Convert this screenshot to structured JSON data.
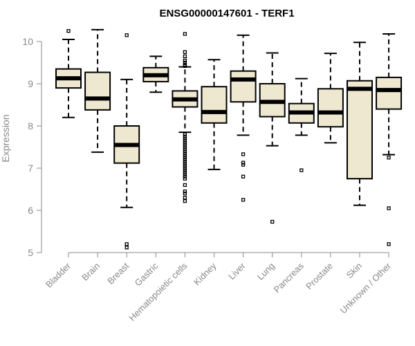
{
  "chart_data": {
    "type": "boxplot",
    "title": "ENSG00000147601 - TERF1",
    "xlabel": "",
    "ylabel": "Expression",
    "ylim": [
      5,
      10.2
    ],
    "yticks": [
      5,
      6,
      7,
      8,
      9,
      10
    ],
    "box_color": "#EEE8D0",
    "categories": [
      "Bladder",
      "Brain",
      "Breast",
      "Gastric",
      "Hematopoietic cells",
      "Kidney",
      "Liver",
      "Lung",
      "Pancreas",
      "Prostate",
      "Skin",
      "Unknown / Other"
    ],
    "boxes": [
      {
        "q1": 8.9,
        "median": 9.13,
        "q3": 9.35,
        "whisker_low": 8.2,
        "whisker_high": 10.05,
        "outliers": [
          10.25
        ]
      },
      {
        "q1": 8.38,
        "median": 8.65,
        "q3": 9.27,
        "whisker_low": 7.38,
        "whisker_high": 10.28,
        "outliers": []
      },
      {
        "q1": 7.12,
        "median": 7.55,
        "q3": 8.0,
        "whisker_low": 6.07,
        "whisker_high": 9.1,
        "outliers": [
          10.15,
          5.2,
          5.12
        ]
      },
      {
        "q1": 9.05,
        "median": 9.2,
        "q3": 9.38,
        "whisker_low": 8.8,
        "whisker_high": 9.65,
        "outliers": []
      },
      {
        "q1": 8.45,
        "median": 8.63,
        "q3": 8.83,
        "whisker_low": 7.85,
        "whisker_high": 9.4,
        "outliers": [
          10.18,
          9.75,
          9.65,
          9.55,
          9.5,
          9.45,
          9.42,
          7.8,
          7.75,
          7.7,
          7.65,
          7.6,
          7.55,
          7.5,
          7.45,
          7.4,
          7.35,
          7.3,
          7.25,
          7.2,
          7.15,
          7.1,
          7.05,
          7.0,
          6.95,
          6.9,
          6.85,
          6.8,
          6.75,
          6.6,
          6.45,
          6.4,
          6.3,
          6.22
        ]
      },
      {
        "q1": 8.07,
        "median": 8.33,
        "q3": 8.93,
        "whisker_low": 6.97,
        "whisker_high": 9.57,
        "outliers": []
      },
      {
        "q1": 8.57,
        "median": 9.1,
        "q3": 9.3,
        "whisker_low": 7.78,
        "whisker_high": 10.15,
        "outliers": [
          7.33,
          7.13,
          7.08,
          6.8,
          6.25
        ]
      },
      {
        "q1": 8.22,
        "median": 8.57,
        "q3": 9.0,
        "whisker_low": 7.53,
        "whisker_high": 9.73,
        "outliers": [
          5.73
        ]
      },
      {
        "q1": 8.07,
        "median": 8.32,
        "q3": 8.53,
        "whisker_low": 7.78,
        "whisker_high": 9.12,
        "outliers": [
          6.95
        ]
      },
      {
        "q1": 7.98,
        "median": 8.32,
        "q3": 8.88,
        "whisker_low": 7.6,
        "whisker_high": 9.72,
        "outliers": []
      },
      {
        "q1": 6.75,
        "median": 8.88,
        "q3": 9.07,
        "whisker_low": 6.12,
        "whisker_high": 9.98,
        "outliers": []
      },
      {
        "q1": 8.4,
        "median": 8.85,
        "q3": 9.15,
        "whisker_low": 7.32,
        "whisker_high": 10.18,
        "outliers": [
          7.25,
          6.05,
          5.2
        ]
      }
    ]
  }
}
